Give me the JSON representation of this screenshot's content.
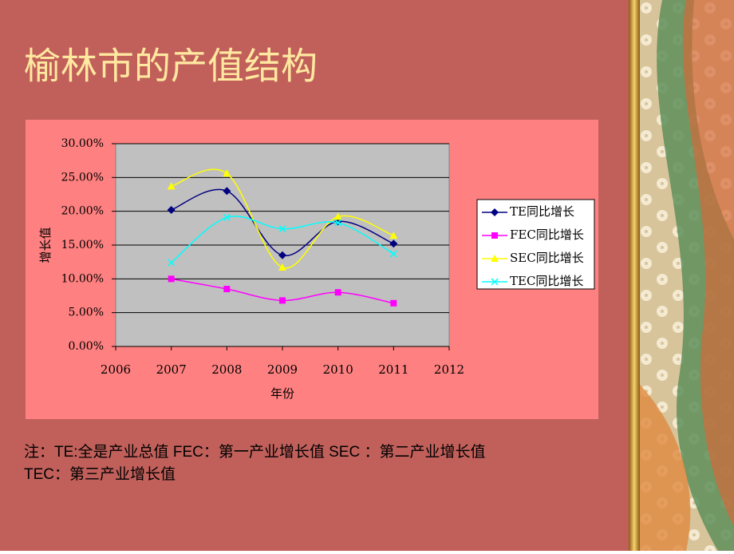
{
  "chart_data": {
    "type": "line",
    "title": "榆林市的产值结构",
    "x_label": "年份",
    "y_label": "增长值",
    "x": [
      2007,
      2008,
      2009,
      2010,
      2011
    ],
    "series": [
      {
        "name": "TE同比增长",
        "color": "#000080",
        "marker": "diamond",
        "values": [
          20.2,
          23.0,
          13.5,
          18.5,
          15.2
        ]
      },
      {
        "name": "FEC同比增长",
        "color": "#ff00ff",
        "marker": "square",
        "values": [
          10.0,
          8.5,
          6.8,
          8.0,
          6.4
        ]
      },
      {
        "name": "SEC同比增长",
        "color": "#ffff00",
        "marker": "triangle",
        "values": [
          23.7,
          25.6,
          11.7,
          19.2,
          16.4
        ]
      },
      {
        "name": "TEC同比增长",
        "color": "#00ffff",
        "marker": "x",
        "values": [
          12.4,
          19.1,
          17.4,
          18.3,
          13.7
        ]
      }
    ],
    "xlim": [
      2006,
      2012
    ],
    "xticks": [
      2006,
      2007,
      2008,
      2009,
      2010,
      2011,
      2012
    ],
    "ylim": [
      0,
      30
    ],
    "yticks": [
      {
        "value": 0,
        "label": "0.00%"
      },
      {
        "value": 5,
        "label": "5.00%"
      },
      {
        "value": 10,
        "label": "10.00%"
      },
      {
        "value": 15,
        "label": "15.00%"
      },
      {
        "value": 20,
        "label": "20.00%"
      },
      {
        "value": 25,
        "label": "25.00%"
      },
      {
        "value": 30,
        "label": "30.00%"
      }
    ],
    "grid": true,
    "smooth": true,
    "legend": "right",
    "annotations": [
      "注：TE:全是产业总值  FEC：第一产业增长值 SEC ：第二产业增长值",
      "TEC：第三产业增长值"
    ]
  }
}
